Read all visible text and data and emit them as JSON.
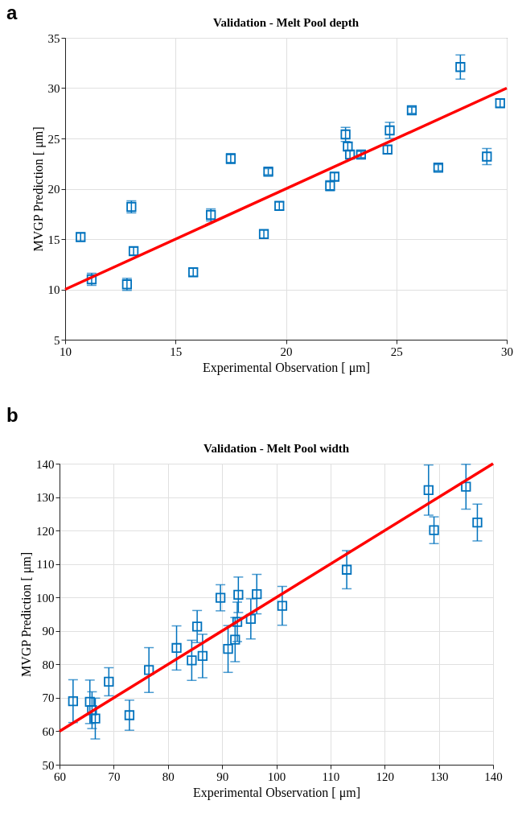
{
  "chart_data": [
    {
      "type": "scatter",
      "title": "Validation - Melt Pool depth",
      "xlabel": "Experimental Observation [ μm]",
      "ylabel": "MVGP Prediction [ μm]",
      "annotations": [
        "a"
      ],
      "xlim": [
        10,
        30
      ],
      "ylim": [
        5,
        35
      ],
      "xticks": [
        10,
        15,
        20,
        25,
        30
      ],
      "yticks": [
        5,
        10,
        15,
        20,
        25,
        30,
        35
      ],
      "grid": true,
      "series": [
        {
          "marker": "square",
          "color": "#0072bd",
          "x": [
            10.7,
            11.2,
            12.8,
            13.0,
            13.1,
            15.8,
            16.6,
            17.5,
            19.0,
            19.2,
            19.7,
            22.0,
            22.2,
            22.7,
            22.8,
            22.9,
            23.4,
            24.6,
            24.7,
            25.7,
            26.9,
            27.9,
            29.1,
            29.7
          ],
          "values": [
            15.2,
            11.0,
            10.5,
            18.2,
            13.8,
            11.7,
            17.4,
            23.0,
            15.5,
            21.7,
            18.3,
            20.3,
            21.2,
            25.4,
            24.2,
            23.4,
            23.4,
            23.9,
            25.8,
            27.8,
            22.1,
            32.1,
            23.2,
            28.5
          ],
          "errors": [
            0.4,
            0.6,
            0.6,
            0.6,
            0.4,
            0.4,
            0.6,
            0.5,
            0.4,
            0.3,
            0.4,
            0.5,
            0.4,
            0.7,
            0.4,
            0.4,
            0.3,
            0.4,
            0.8,
            0.3,
            0.3,
            1.2,
            0.8,
            0.4
          ]
        },
        {
          "type": "line",
          "color": "#ff0000",
          "x": [
            10,
            30
          ],
          "values": [
            10,
            30
          ]
        }
      ]
    },
    {
      "type": "scatter",
      "title": "Validation - Melt Pool width",
      "xlabel": "Experimental Observation [ μm]",
      "ylabel": "MVGP Prediction [ μm]",
      "annotations": [
        "b"
      ],
      "xlim": [
        60,
        140
      ],
      "ylim": [
        50,
        140
      ],
      "xticks": [
        60,
        70,
        80,
        90,
        100,
        110,
        120,
        130,
        140
      ],
      "yticks": [
        50,
        60,
        70,
        80,
        90,
        100,
        110,
        120,
        130,
        140
      ],
      "grid": true,
      "series": [
        {
          "marker": "square",
          "color": "#0072bd",
          "x": [
            62.5,
            65.6,
            66.0,
            66.6,
            69.1,
            72.9,
            76.5,
            81.6,
            84.4,
            85.4,
            86.4,
            89.7,
            91.1,
            92.4,
            92.8,
            93.0,
            95.3,
            96.4,
            101.1,
            113.0,
            128.1,
            129.1,
            135.0,
            137.1
          ],
          "values": [
            69.0,
            68.8,
            66.3,
            63.8,
            74.8,
            64.8,
            78.3,
            84.9,
            81.2,
            91.3,
            82.5,
            99.9,
            84.6,
            87.4,
            92.7,
            100.8,
            93.6,
            101.0,
            97.5,
            108.3,
            132.1,
            120.1,
            133.1,
            122.4
          ],
          "errors": [
            6.4,
            6.5,
            5.5,
            6.1,
            4.2,
            4.5,
            6.7,
            6.6,
            6.0,
            4.8,
            6.5,
            3.9,
            7.0,
            6.6,
            5.9,
            5.3,
            6.0,
            5.9,
            5.8,
            5.7,
            7.5,
            4.0,
            6.7,
            5.5
          ]
        },
        {
          "type": "line",
          "color": "#ff0000",
          "x": [
            60,
            140
          ],
          "values": [
            60,
            140
          ]
        }
      ]
    }
  ]
}
